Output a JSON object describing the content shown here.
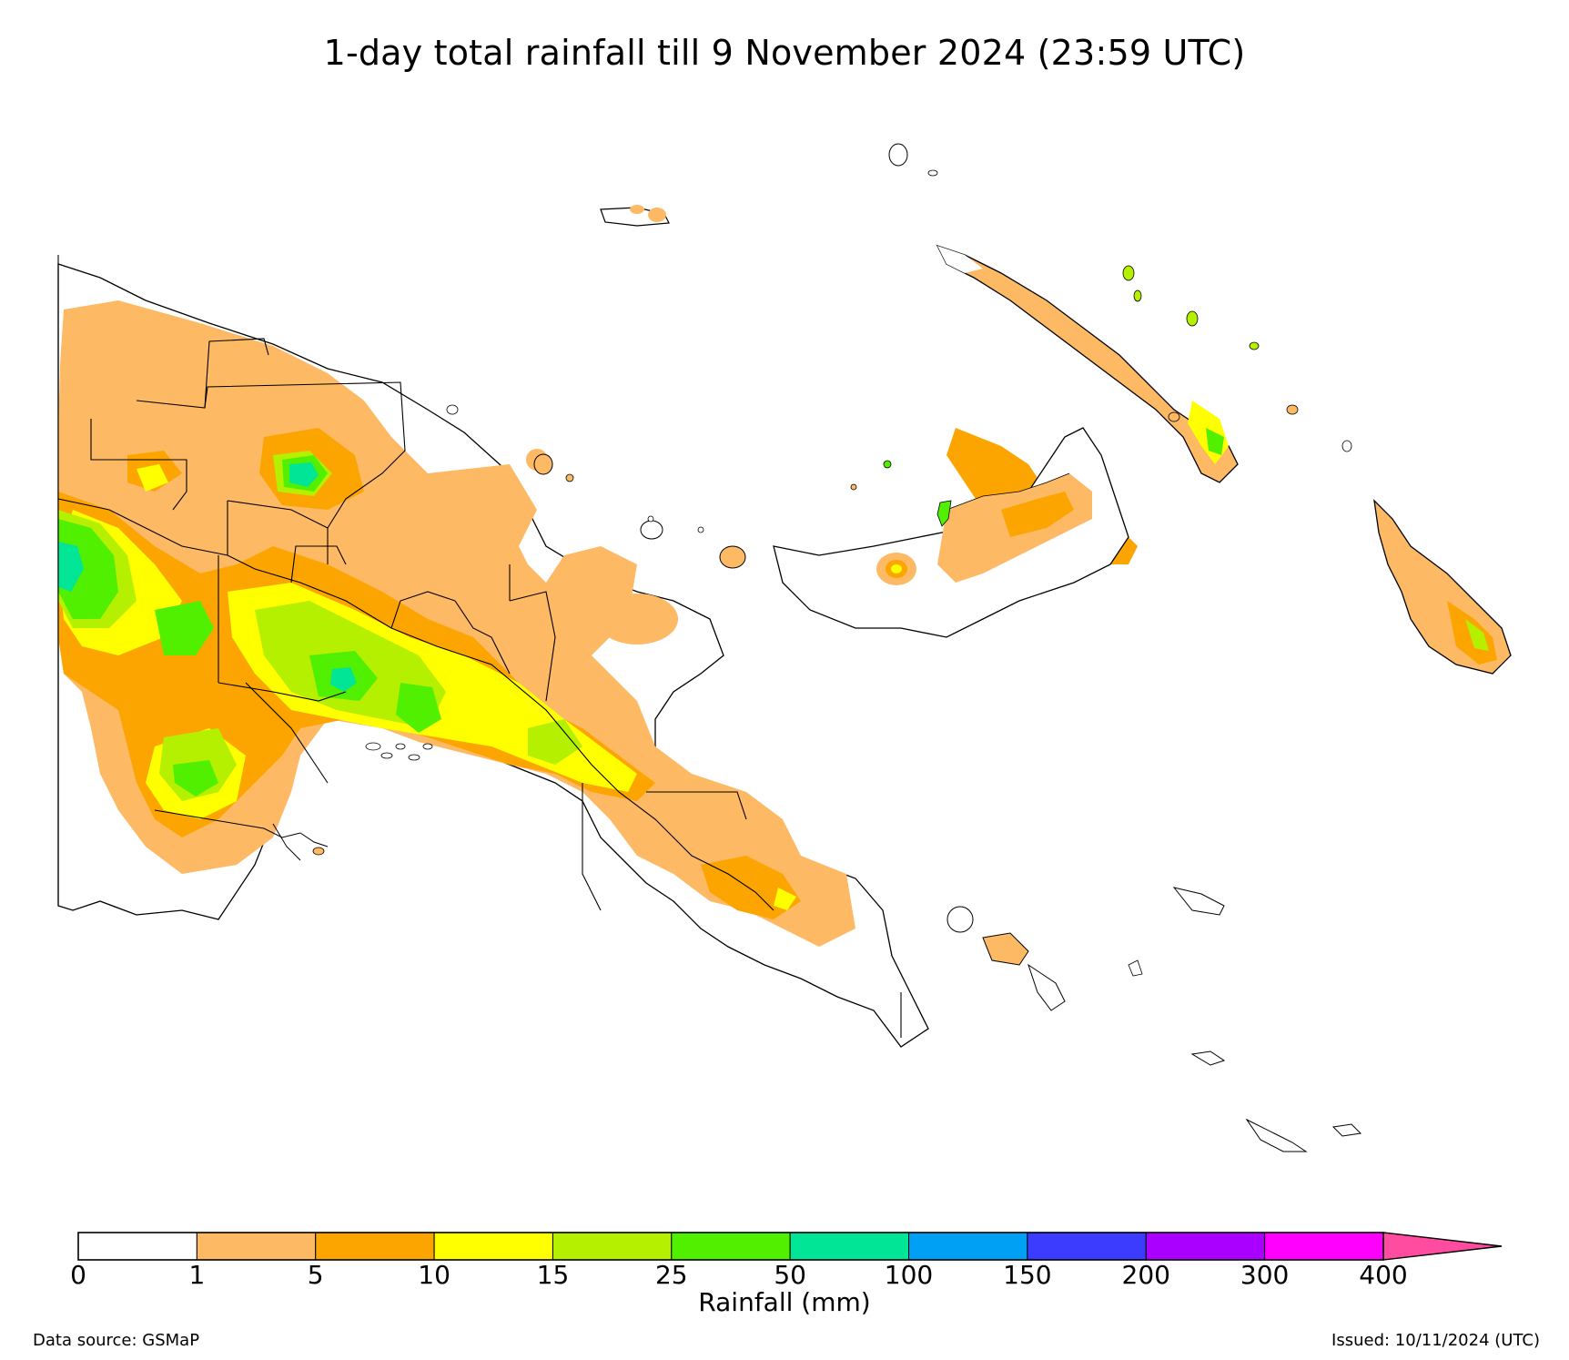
{
  "title": "1-day total rainfall till 9 November 2024 (23:59 UTC)",
  "legend": {
    "label": "Rainfall (mm)",
    "ticks": [
      "0",
      "1",
      "5",
      "10",
      "15",
      "25",
      "50",
      "100",
      "150",
      "200",
      "300",
      "400"
    ],
    "colors": [
      "#ffffff",
      "#fdb964",
      "#fca500",
      "#ffff00",
      "#b4f000",
      "#50f000",
      "#00e696",
      "#00a0f5",
      "#3c3cff",
      "#aa00ff",
      "#ff00ff",
      "#ff4ba0"
    ]
  },
  "footer": {
    "source": "Data source: GSMaP",
    "issued": "Issued: 10/11/2024 (UTC)"
  }
}
